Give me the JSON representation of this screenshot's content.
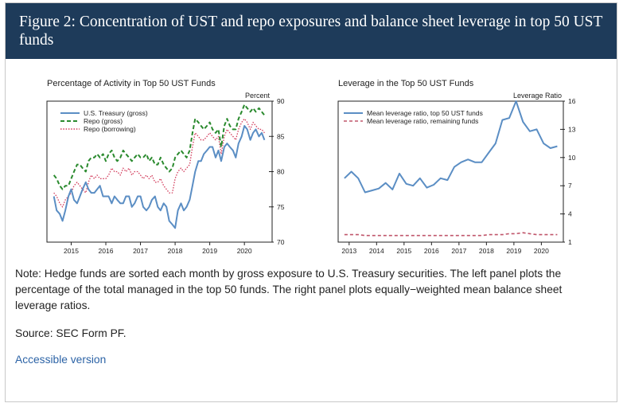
{
  "figure": {
    "title": "Figure 2: Concentration of UST and repo exposures and balance sheet leverage in top 50 UST funds",
    "note": "Note: Hedge funds are sorted each month by gross exposure to U.S. Treasury securities. The left panel plots the percentage of the total managed in the top 50 funds. The right panel plots equally−weighted mean balance sheet leverage ratios.",
    "source": "Source: SEC Form PF.",
    "accessible_link": "Accessible version"
  },
  "colors": {
    "header_bg": "#1e3b5a",
    "ust": "#5b8ec4",
    "repo_gross": "#2a8a2e",
    "repo_borrowing": "#d23a5a",
    "lev_top50": "#5b8ec4",
    "lev_remaining": "#c0566b",
    "link": "#2c63a6"
  },
  "chart_data": [
    {
      "type": "line",
      "title": "Percentage of Activity in Top 50 UST Funds",
      "ylabel": "Percent",
      "xlabel": "",
      "x_tick_labels": [
        "2015",
        "2016",
        "2017",
        "2018",
        "2019",
        "2020"
      ],
      "x_tick_values": [
        2015,
        2016,
        2017,
        2018,
        2019,
        2020
      ],
      "xlim": [
        2014.3,
        2020.8
      ],
      "ylim": [
        70,
        90
      ],
      "y_ticks": [
        70,
        75,
        80,
        85,
        90
      ],
      "y_axis_side": "right",
      "grid": false,
      "legend": "top-left",
      "series": [
        {
          "name": "U.S. Treasury (gross)",
          "style": "solid",
          "x": [
            2014.5,
            2014.58,
            2014.67,
            2014.75,
            2014.83,
            2014.92,
            2015.0,
            2015.08,
            2015.17,
            2015.25,
            2015.33,
            2015.42,
            2015.5,
            2015.58,
            2015.67,
            2015.75,
            2015.83,
            2015.92,
            2016.0,
            2016.08,
            2016.17,
            2016.25,
            2016.33,
            2016.42,
            2016.5,
            2016.58,
            2016.67,
            2016.75,
            2016.83,
            2016.92,
            2017.0,
            2017.08,
            2017.17,
            2017.25,
            2017.33,
            2017.42,
            2017.5,
            2017.58,
            2017.67,
            2017.75,
            2017.83,
            2017.92,
            2018.0,
            2018.08,
            2018.17,
            2018.25,
            2018.33,
            2018.42,
            2018.5,
            2018.58,
            2018.67,
            2018.75,
            2018.83,
            2018.92,
            2019.0,
            2019.08,
            2019.17,
            2019.25,
            2019.33,
            2019.42,
            2019.5,
            2019.58,
            2019.67,
            2019.75,
            2019.83,
            2019.92,
            2020.0,
            2020.08,
            2020.17,
            2020.25,
            2020.33,
            2020.42,
            2020.5,
            2020.58
          ],
          "values": [
            76.5,
            74.5,
            74.0,
            73.0,
            74.5,
            76.5,
            77.5,
            76.0,
            75.5,
            76.5,
            77.5,
            78.5,
            77.5,
            77.0,
            77.0,
            77.5,
            78.0,
            76.5,
            76.5,
            76.5,
            75.5,
            76.5,
            76.0,
            75.5,
            75.5,
            76.5,
            76.5,
            75.0,
            75.5,
            76.5,
            76.5,
            75.0,
            74.5,
            75.0,
            76.0,
            76.5,
            75.0,
            74.5,
            75.5,
            75.0,
            73.0,
            72.5,
            72.0,
            74.5,
            75.5,
            74.5,
            75.0,
            76.0,
            78.0,
            80.0,
            81.5,
            81.5,
            82.5,
            83.0,
            83.5,
            83.5,
            82.0,
            83.0,
            81.5,
            83.5,
            84.0,
            83.5,
            83.0,
            82.0,
            84.0,
            85.0,
            86.5,
            86.0,
            84.5,
            85.5,
            86.0,
            85.0,
            85.5,
            84.5
          ]
        },
        {
          "name": "Repo (gross)",
          "style": "dashed",
          "x": [
            2014.5,
            2014.58,
            2014.67,
            2014.75,
            2014.83,
            2014.92,
            2015.0,
            2015.08,
            2015.17,
            2015.25,
            2015.33,
            2015.42,
            2015.5,
            2015.58,
            2015.67,
            2015.75,
            2015.83,
            2015.92,
            2016.0,
            2016.08,
            2016.17,
            2016.25,
            2016.33,
            2016.42,
            2016.5,
            2016.58,
            2016.67,
            2016.75,
            2016.83,
            2016.92,
            2017.0,
            2017.08,
            2017.17,
            2017.25,
            2017.33,
            2017.42,
            2017.5,
            2017.58,
            2017.67,
            2017.75,
            2017.83,
            2017.92,
            2018.0,
            2018.08,
            2018.17,
            2018.25,
            2018.33,
            2018.42,
            2018.5,
            2018.58,
            2018.67,
            2018.75,
            2018.83,
            2018.92,
            2019.0,
            2019.08,
            2019.17,
            2019.25,
            2019.33,
            2019.42,
            2019.5,
            2019.58,
            2019.67,
            2019.75,
            2019.83,
            2019.92,
            2020.0,
            2020.08,
            2020.17,
            2020.25,
            2020.33,
            2020.42,
            2020.5,
            2020.58
          ],
          "values": [
            79.5,
            79.0,
            78.0,
            77.5,
            78.0,
            78.0,
            79.0,
            80.0,
            81.0,
            81.0,
            80.5,
            80.0,
            81.5,
            82.0,
            82.0,
            82.5,
            82.0,
            82.5,
            81.5,
            82.5,
            83.0,
            82.0,
            81.5,
            82.0,
            83.0,
            82.5,
            82.0,
            81.5,
            82.0,
            82.5,
            82.0,
            82.0,
            82.5,
            81.5,
            82.0,
            81.0,
            81.0,
            82.0,
            81.0,
            80.5,
            80.0,
            80.5,
            82.0,
            82.5,
            83.0,
            82.5,
            82.0,
            83.0,
            85.5,
            87.5,
            87.0,
            86.5,
            86.0,
            86.5,
            87.0,
            86.0,
            85.5,
            86.0,
            83.5,
            86.5,
            87.5,
            86.5,
            86.0,
            86.0,
            87.5,
            88.5,
            89.5,
            89.0,
            88.5,
            89.0,
            88.5,
            89.0,
            88.5,
            88.0
          ]
        },
        {
          "name": "Repo (borrowing)",
          "style": "dotted",
          "x": [
            2014.5,
            2014.58,
            2014.67,
            2014.75,
            2014.83,
            2014.92,
            2015.0,
            2015.08,
            2015.17,
            2015.25,
            2015.33,
            2015.42,
            2015.5,
            2015.58,
            2015.67,
            2015.75,
            2015.83,
            2015.92,
            2016.0,
            2016.08,
            2016.17,
            2016.25,
            2016.33,
            2016.42,
            2016.5,
            2016.58,
            2016.67,
            2016.75,
            2016.83,
            2016.92,
            2017.0,
            2017.08,
            2017.17,
            2017.25,
            2017.33,
            2017.42,
            2017.5,
            2017.58,
            2017.67,
            2017.75,
            2017.83,
            2017.92,
            2018.0,
            2018.08,
            2018.17,
            2018.25,
            2018.33,
            2018.42,
            2018.5,
            2018.58,
            2018.67,
            2018.75,
            2018.83,
            2018.92,
            2019.0,
            2019.08,
            2019.17,
            2019.25,
            2019.33,
            2019.42,
            2019.5,
            2019.58,
            2019.67,
            2019.75,
            2019.83,
            2019.92,
            2020.0,
            2020.08,
            2020.17,
            2020.25,
            2020.33,
            2020.42,
            2020.5,
            2020.58
          ],
          "values": [
            77.0,
            76.5,
            75.5,
            75.0,
            76.0,
            76.5,
            77.0,
            78.0,
            78.5,
            78.0,
            77.5,
            77.0,
            78.5,
            79.5,
            79.0,
            79.5,
            79.0,
            79.0,
            79.0,
            79.5,
            80.5,
            80.0,
            80.0,
            79.5,
            80.5,
            80.0,
            80.5,
            79.5,
            80.0,
            80.0,
            79.5,
            79.0,
            79.5,
            79.0,
            79.5,
            78.5,
            78.5,
            79.0,
            78.0,
            77.5,
            77.0,
            77.0,
            79.0,
            80.0,
            80.5,
            80.0,
            80.5,
            81.0,
            83.5,
            85.5,
            85.0,
            84.5,
            84.5,
            85.0,
            85.5,
            85.0,
            84.5,
            85.0,
            82.5,
            85.0,
            86.0,
            85.5,
            85.0,
            84.5,
            86.0,
            87.0,
            87.5,
            87.0,
            86.0,
            87.0,
            86.5,
            86.0,
            86.0,
            85.5
          ]
        }
      ]
    },
    {
      "type": "line",
      "title": "Leverage in the Top 50 UST Funds",
      "ylabel": "Leverage Ratio",
      "xlabel": "",
      "x_tick_labels": [
        "2013",
        "2014",
        "2015",
        "2016",
        "2017",
        "2018",
        "2019",
        "2020"
      ],
      "x_tick_values": [
        2013,
        2014,
        2015,
        2016,
        2017,
        2018,
        2019,
        2020
      ],
      "xlim": [
        2012.6,
        2020.8
      ],
      "ylim": [
        1,
        16
      ],
      "y_ticks": [
        1,
        4,
        7,
        10,
        13,
        16
      ],
      "y_axis_side": "right",
      "grid": false,
      "legend": "top-left",
      "series": [
        {
          "name": "Mean leverage ratio, top 50 UST funds",
          "style": "solid",
          "x": [
            2012.83,
            2013.08,
            2013.33,
            2013.58,
            2013.83,
            2014.08,
            2014.33,
            2014.58,
            2014.83,
            2015.08,
            2015.33,
            2015.58,
            2015.83,
            2016.08,
            2016.33,
            2016.58,
            2016.83,
            2017.08,
            2017.33,
            2017.58,
            2017.83,
            2018.08,
            2018.33,
            2018.58,
            2018.83,
            2019.08,
            2019.33,
            2019.58,
            2019.83,
            2020.08,
            2020.33,
            2020.58
          ],
          "values": [
            7.8,
            8.5,
            7.8,
            6.3,
            6.5,
            6.7,
            7.3,
            6.6,
            8.3,
            7.2,
            7.0,
            7.8,
            6.8,
            7.1,
            7.8,
            7.6,
            9.0,
            9.5,
            9.8,
            9.5,
            9.5,
            10.5,
            11.5,
            14.0,
            14.2,
            16.0,
            13.8,
            12.8,
            13.0,
            11.5,
            11.0,
            11.2
          ]
        },
        {
          "name": "Mean leverage ratio, remaining funds",
          "style": "dashed",
          "x": [
            2012.83,
            2013.08,
            2013.33,
            2013.58,
            2013.83,
            2014.08,
            2014.33,
            2014.58,
            2014.83,
            2015.08,
            2015.33,
            2015.58,
            2015.83,
            2016.08,
            2016.33,
            2016.58,
            2016.83,
            2017.08,
            2017.33,
            2017.58,
            2017.83,
            2018.08,
            2018.33,
            2018.58,
            2018.83,
            2019.08,
            2019.33,
            2019.58,
            2019.83,
            2020.08,
            2020.33,
            2020.58
          ],
          "values": [
            1.8,
            1.8,
            1.8,
            1.7,
            1.7,
            1.7,
            1.7,
            1.7,
            1.7,
            1.7,
            1.7,
            1.7,
            1.7,
            1.7,
            1.7,
            1.7,
            1.7,
            1.7,
            1.7,
            1.7,
            1.7,
            1.8,
            1.8,
            1.8,
            1.9,
            1.9,
            2.0,
            1.9,
            1.8,
            1.8,
            1.8,
            1.8
          ]
        }
      ]
    }
  ]
}
